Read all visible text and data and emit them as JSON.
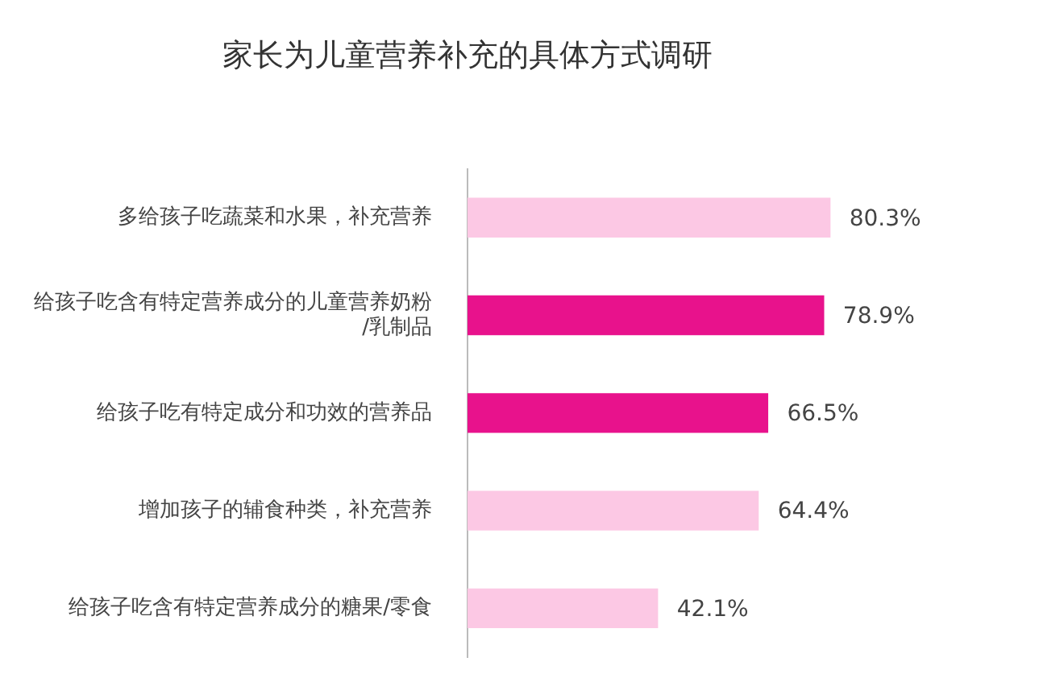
{
  "chart_data": {
    "type": "bar",
    "orientation": "horizontal",
    "title": "家长为儿童营养补充的具体方式调研",
    "categories": [
      "多给孩子吃蔬菜和水果，补充营养",
      "给孩子吃含有特定营养成分的儿童营养奶粉/乳制品",
      "给孩子吃有特定成分和功效的营养品",
      "增加孩子的辅食种类，补充营养",
      "给孩子吃含有特定营养成分的糖果/零食"
    ],
    "values": [
      80.3,
      78.9,
      66.5,
      64.4,
      42.1
    ],
    "colors": [
      "#fcc8e4",
      "#e8128c",
      "#e8128c",
      "#fcc8e4",
      "#fcc8e4"
    ],
    "value_labels": [
      "80.3%",
      "78.9%",
      "66.5%",
      "64.4%",
      "42.1%"
    ],
    "grid": false,
    "legend": false
  }
}
